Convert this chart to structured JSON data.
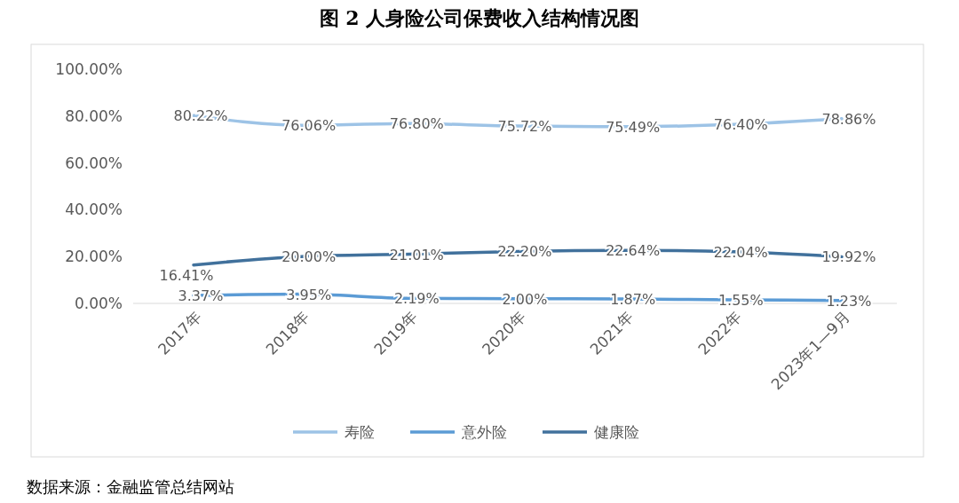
{
  "chart_data": {
    "type": "line",
    "title": "图 2  人身险公司保费收入结构情况图",
    "categories": [
      "2017年",
      "2018年",
      "2019年",
      "2020年",
      "2021年",
      "2022年",
      "2023年1—9月"
    ],
    "series": [
      {
        "name": "寿险",
        "color": "#9dc3e6",
        "values": [
          80.22,
          76.06,
          76.8,
          75.72,
          75.49,
          76.4,
          78.86
        ],
        "value_labels": [
          "80.22%",
          "76.06%",
          "76.80%",
          "75.72%",
          "75.49%",
          "76.40%",
          "78.86%"
        ]
      },
      {
        "name": "意外险",
        "color": "#5b9bd5",
        "values": [
          3.37,
          3.95,
          2.19,
          2.0,
          1.87,
          1.55,
          1.23
        ],
        "value_labels": [
          "3.37%",
          "3.95%",
          "2.19%",
          "2.00%",
          "1.87%",
          "1.55%",
          "1.23%"
        ]
      },
      {
        "name": "健康险",
        "color": "#41719c",
        "values": [
          16.41,
          20.0,
          21.01,
          22.2,
          22.64,
          22.04,
          19.92
        ],
        "value_labels": [
          "16.41%",
          "20.00%",
          "21.01%",
          "22.20%",
          "22.64%",
          "22.04%",
          "19.92%"
        ]
      }
    ],
    "ylim": [
      0,
      100
    ],
    "yticks": [
      {
        "value": 0,
        "label": "0.00%"
      },
      {
        "value": 20,
        "label": "20.00%"
      },
      {
        "value": 40,
        "label": "40.00%"
      },
      {
        "value": 60,
        "label": "60.00%"
      },
      {
        "value": 80,
        "label": "80.00%"
      },
      {
        "value": 100,
        "label": "100.00%"
      }
    ],
    "grid": false,
    "legend": "bottom",
    "marker": "none",
    "line_style": "solid",
    "annotations": [
      "数据来源：金融监管总结网站"
    ]
  }
}
